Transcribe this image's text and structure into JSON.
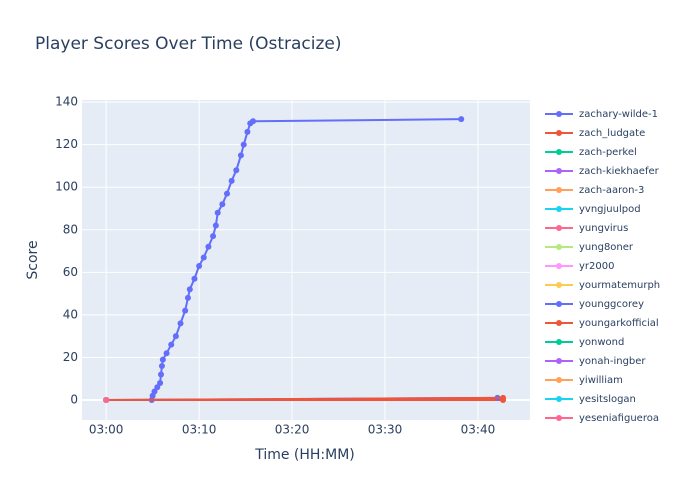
{
  "chart_data": {
    "type": "line",
    "title": "Player Scores Over Time (Ostracize)",
    "x_label": "Time (HH:MM)",
    "y_label": "Score",
    "xlim": [
      177.4,
      225.6
    ],
    "ylim": [
      -9.4,
      141
    ],
    "xticks": [
      {
        "value": 180,
        "label": "03:00"
      },
      {
        "value": 190,
        "label": "03:10"
      },
      {
        "value": 200,
        "label": "03:20"
      },
      {
        "value": 210,
        "label": "03:30"
      },
      {
        "value": 220,
        "label": "03:40"
      }
    ],
    "yticks": [
      0,
      20,
      40,
      60,
      80,
      100,
      120,
      140
    ],
    "grid": true,
    "legend": "right",
    "series": [
      {
        "name": "zachary-wilde-1",
        "color": "#636efa",
        "x": [
          184.9,
          185.0,
          185.2,
          185.5,
          185.8,
          185.9,
          186.0,
          186.1,
          186.5,
          187.0,
          187.5,
          188.0,
          188.5,
          188.8,
          189.0,
          189.5,
          190.0,
          190.5,
          191.0,
          191.5,
          191.8,
          192.0,
          192.5,
          193.0,
          193.5,
          194.0,
          194.5,
          194.8,
          195.2,
          195.5,
          195.8,
          218.2
        ],
        "values": [
          0,
          2,
          4,
          6,
          8,
          12,
          16,
          19,
          22,
          26,
          30,
          36,
          42,
          48,
          52,
          57,
          63,
          67,
          72,
          77,
          82,
          88,
          92,
          97,
          103,
          108,
          115,
          120,
          126,
          130,
          131,
          132
        ]
      },
      {
        "name": "zach_ludgate",
        "color": "#ef553b",
        "x": [
          180,
          222.7
        ],
        "values": [
          0,
          0
        ]
      },
      {
        "name": "zach-perkel",
        "color": "#00cc96",
        "x": [
          180
        ],
        "values": [
          0
        ]
      },
      {
        "name": "zach-kiekhaefer",
        "color": "#ab63fa",
        "x": [
          180
        ],
        "values": [
          0
        ]
      },
      {
        "name": "zach-aaron-3",
        "color": "#ffa15a",
        "x": [
          180
        ],
        "values": [
          0
        ]
      },
      {
        "name": "yvngjuulpod",
        "color": "#19d3f3",
        "x": [
          180
        ],
        "values": [
          0
        ]
      },
      {
        "name": "yungvirus",
        "color": "#ff6692",
        "x": [
          180
        ],
        "values": [
          0
        ]
      },
      {
        "name": "yung8oner",
        "color": "#b6e880",
        "x": [
          180
        ],
        "values": [
          0
        ]
      },
      {
        "name": "yr2000",
        "color": "#ff97ff",
        "x": [
          180
        ],
        "values": [
          0
        ]
      },
      {
        "name": "yourmatemurph",
        "color": "#fecb52",
        "x": [
          180
        ],
        "values": [
          0
        ]
      },
      {
        "name": "younggcorey",
        "color": "#636efa",
        "x": [
          180,
          222.1
        ],
        "values": [
          0,
          1
        ]
      },
      {
        "name": "youngarkofficial",
        "color": "#ef553b",
        "x": [
          180,
          222.7
        ],
        "values": [
          0,
          1
        ]
      },
      {
        "name": "yonwond",
        "color": "#00cc96",
        "x": [
          180
        ],
        "values": [
          0
        ]
      },
      {
        "name": "yonah-ingber",
        "color": "#ab63fa",
        "x": [
          180
        ],
        "values": [
          0
        ]
      },
      {
        "name": "yiwilliam",
        "color": "#ffa15a",
        "x": [
          180
        ],
        "values": [
          0
        ]
      },
      {
        "name": "yesitslogan",
        "color": "#19d3f3",
        "x": [
          180
        ],
        "values": [
          0
        ]
      },
      {
        "name": "yeseniafigueroa",
        "color": "#ff6692",
        "x": [
          180
        ],
        "values": [
          0
        ]
      }
    ]
  }
}
